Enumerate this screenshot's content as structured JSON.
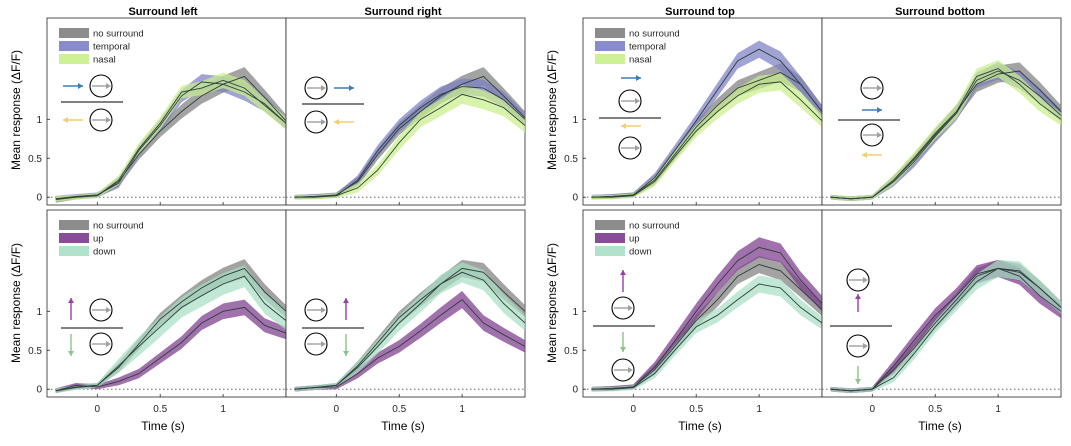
{
  "figure": {
    "column_titles": [
      "Surround left",
      "Surround right",
      "Surround top",
      "Surround bottom"
    ],
    "ylabel": "Mean response (ΔF/F)",
    "xlabel": "Time (s)",
    "colors": {
      "no_surround": "#7f7f7f",
      "temporal": "#7b7fc4",
      "nasal": "#c9f08c",
      "up": "#7b3a8c",
      "down": "#a9dfc5",
      "line": "#2f3f3a",
      "arrow_blue": "#3a7fb5",
      "arrow_yellow": "#f2cf6e",
      "arrow_purple": "#9b3fa8",
      "arrow_green": "#8bc48a",
      "arrow_gray": "#a0a0a0"
    }
  },
  "legends": {
    "horizontal": [
      "no surround",
      "temporal",
      "nasal"
    ],
    "vertical": [
      "no surround",
      "up",
      "down"
    ]
  },
  "chart_data": [
    {
      "type": "area",
      "id": "surround-left-horizontal",
      "x": [
        -0.33,
        -0.17,
        0,
        0.17,
        0.33,
        0.5,
        0.67,
        0.83,
        1.0,
        1.17,
        1.33,
        1.5
      ],
      "xlim": [
        -0.4,
        1.5
      ],
      "ylim": [
        -0.1,
        2.3
      ],
      "xticks": [
        0,
        0.5,
        1
      ],
      "xtick_labels": [
        "0",
        "0.5",
        "1"
      ],
      "yticks": [
        0,
        0.5,
        1
      ],
      "ytick_labels": [
        "0",
        "0.5",
        "1"
      ],
      "series": [
        {
          "name": "no surround",
          "mean": [
            -0.03,
            0,
            0.02,
            0.2,
            0.55,
            0.85,
            1.1,
            1.3,
            1.45,
            1.55,
            1.28,
            0.98
          ],
          "sem": [
            0.04,
            0.03,
            0.03,
            0.06,
            0.07,
            0.08,
            0.09,
            0.1,
            0.11,
            0.12,
            0.1,
            0.08
          ]
        },
        {
          "name": "temporal",
          "mean": [
            -0.02,
            0.01,
            0.03,
            0.18,
            0.6,
            0.92,
            1.3,
            1.48,
            1.45,
            1.35,
            1.2,
            0.95
          ],
          "sem": [
            0.04,
            0.03,
            0.03,
            0.06,
            0.07,
            0.08,
            0.08,
            0.1,
            0.1,
            0.11,
            0.1,
            0.08
          ]
        },
        {
          "name": "nasal",
          "mean": [
            -0.02,
            0.0,
            0.02,
            0.22,
            0.62,
            0.95,
            1.35,
            1.4,
            1.5,
            1.4,
            1.18,
            0.95
          ],
          "sem": [
            0.04,
            0.03,
            0.03,
            0.06,
            0.07,
            0.08,
            0.08,
            0.09,
            0.1,
            0.1,
            0.09,
            0.08
          ]
        }
      ]
    },
    {
      "type": "area",
      "id": "surround-right-horizontal",
      "x": [
        -0.33,
        -0.17,
        0,
        0.17,
        0.33,
        0.5,
        0.67,
        0.83,
        1.0,
        1.17,
        1.33,
        1.5
      ],
      "xlim": [
        -0.4,
        1.5
      ],
      "ylim": [
        -0.1,
        2.3
      ],
      "xticks": [
        0,
        0.5,
        1
      ],
      "xtick_labels": [
        "0",
        "0.5",
        "1"
      ],
      "yticks": [
        0,
        0.5,
        1
      ],
      "ytick_labels": [
        "0",
        "0.5",
        "1"
      ],
      "series": [
        {
          "name": "no surround",
          "mean": [
            0,
            0.01,
            0.03,
            0.2,
            0.55,
            0.88,
            1.1,
            1.3,
            1.45,
            1.55,
            1.3,
            1.02
          ],
          "sem": [
            0.03,
            0.03,
            0.03,
            0.06,
            0.07,
            0.08,
            0.09,
            0.1,
            0.11,
            0.12,
            0.1,
            0.08
          ]
        },
        {
          "name": "temporal",
          "mean": [
            0,
            0.01,
            0.02,
            0.22,
            0.6,
            0.92,
            1.15,
            1.32,
            1.42,
            1.4,
            1.25,
            1.0
          ],
          "sem": [
            0.03,
            0.03,
            0.03,
            0.06,
            0.07,
            0.08,
            0.09,
            0.1,
            0.1,
            0.11,
            0.1,
            0.08
          ]
        },
        {
          "name": "nasal",
          "mean": [
            0,
            0,
            0.02,
            0.12,
            0.35,
            0.7,
            1.0,
            1.15,
            1.32,
            1.25,
            1.15,
            0.92
          ],
          "sem": [
            0.03,
            0.03,
            0.03,
            0.06,
            0.07,
            0.09,
            0.1,
            0.11,
            0.12,
            0.12,
            0.11,
            0.09
          ]
        }
      ]
    },
    {
      "type": "area",
      "id": "surround-top-horizontal",
      "x": [
        -0.33,
        -0.17,
        0,
        0.17,
        0.33,
        0.5,
        0.67,
        0.83,
        1.0,
        1.17,
        1.33,
        1.5
      ],
      "xlim": [
        -0.4,
        1.5
      ],
      "ylim": [
        -0.1,
        2.3
      ],
      "xticks": [
        0,
        0.5,
        1
      ],
      "xtick_labels": [
        "0",
        "0.5",
        "1"
      ],
      "yticks": [
        0,
        0.5,
        1
      ],
      "ytick_labels": [
        "0",
        "0.5",
        "1"
      ],
      "series": [
        {
          "name": "no surround",
          "mean": [
            0,
            0.01,
            0.03,
            0.22,
            0.55,
            0.9,
            1.18,
            1.4,
            1.5,
            1.6,
            1.45,
            1.1
          ],
          "sem": [
            0.03,
            0.03,
            0.03,
            0.06,
            0.07,
            0.08,
            0.09,
            0.1,
            0.11,
            0.12,
            0.1,
            0.08
          ]
        },
        {
          "name": "temporal",
          "mean": [
            0,
            0.01,
            0.03,
            0.25,
            0.6,
            0.98,
            1.38,
            1.75,
            1.9,
            1.75,
            1.45,
            1.1
          ],
          "sem": [
            0.03,
            0.03,
            0.03,
            0.06,
            0.07,
            0.08,
            0.09,
            0.1,
            0.11,
            0.12,
            0.1,
            0.08
          ]
        },
        {
          "name": "nasal",
          "mean": [
            0,
            0,
            0.02,
            0.2,
            0.52,
            0.85,
            1.1,
            1.3,
            1.45,
            1.48,
            1.25,
            0.98
          ],
          "sem": [
            0.03,
            0.03,
            0.03,
            0.06,
            0.07,
            0.08,
            0.09,
            0.1,
            0.11,
            0.11,
            0.1,
            0.08
          ]
        }
      ]
    },
    {
      "type": "area",
      "id": "surround-bottom-horizontal",
      "x": [
        -0.33,
        -0.17,
        0,
        0.17,
        0.33,
        0.5,
        0.67,
        0.83,
        1.0,
        1.17,
        1.33,
        1.5
      ],
      "xlim": [
        -0.4,
        1.5
      ],
      "ylim": [
        -0.1,
        2.3
      ],
      "xticks": [
        0,
        0.5,
        1
      ],
      "xtick_labels": [
        "0",
        "0.5",
        "1"
      ],
      "yticks": [
        0,
        0.5,
        1
      ],
      "ytick_labels": [
        "0",
        "0.5",
        "1"
      ],
      "series": [
        {
          "name": "no surround",
          "mean": [
            0,
            -0.02,
            0.0,
            0.22,
            0.48,
            0.8,
            1.1,
            1.45,
            1.58,
            1.62,
            1.38,
            1.1
          ],
          "sem": [
            0.03,
            0.03,
            0.03,
            0.06,
            0.07,
            0.08,
            0.09,
            0.1,
            0.11,
            0.11,
            0.1,
            0.08
          ]
        },
        {
          "name": "temporal",
          "mean": [
            0,
            -0.02,
            0.0,
            0.2,
            0.45,
            0.78,
            1.08,
            1.5,
            1.62,
            1.5,
            1.3,
            1.05
          ],
          "sem": [
            0.03,
            0.03,
            0.03,
            0.06,
            0.07,
            0.08,
            0.09,
            0.1,
            0.11,
            0.11,
            0.1,
            0.08
          ]
        },
        {
          "name": "nasal",
          "mean": [
            0,
            -0.02,
            0.0,
            0.22,
            0.5,
            0.82,
            1.1,
            1.55,
            1.65,
            1.45,
            1.2,
            1.0
          ],
          "sem": [
            0.03,
            0.03,
            0.03,
            0.06,
            0.07,
            0.08,
            0.09,
            0.1,
            0.11,
            0.11,
            0.1,
            0.08
          ]
        }
      ]
    },
    {
      "type": "area",
      "id": "surround-left-vertical",
      "x": [
        -0.33,
        -0.17,
        0,
        0.17,
        0.33,
        0.5,
        0.67,
        0.83,
        1.0,
        1.17,
        1.33,
        1.5
      ],
      "xlim": [
        -0.4,
        1.5
      ],
      "ylim": [
        -0.1,
        2.3
      ],
      "xticks": [
        0,
        0.5,
        1
      ],
      "xtick_labels": [
        "0",
        "0.5",
        "1"
      ],
      "yticks": [
        0,
        0.5,
        1
      ],
      "ytick_labels": [
        "0",
        "0.5",
        "1"
      ],
      "series": [
        {
          "name": "no surround",
          "mean": [
            -0.02,
            0.03,
            0.05,
            0.28,
            0.58,
            0.9,
            1.12,
            1.3,
            1.45,
            1.55,
            1.25,
            1.0
          ],
          "sem": [
            0.03,
            0.03,
            0.03,
            0.06,
            0.07,
            0.08,
            0.09,
            0.1,
            0.11,
            0.12,
            0.1,
            0.08
          ]
        },
        {
          "name": "up",
          "mean": [
            -0.02,
            0.05,
            0.03,
            0.1,
            0.2,
            0.4,
            0.6,
            0.85,
            1.0,
            1.05,
            0.82,
            0.72
          ],
          "sem": [
            0.03,
            0.03,
            0.03,
            0.05,
            0.06,
            0.07,
            0.08,
            0.09,
            0.1,
            0.1,
            0.09,
            0.08
          ]
        },
        {
          "name": "down",
          "mean": [
            -0.02,
            0.02,
            0.05,
            0.3,
            0.55,
            0.8,
            1.05,
            1.2,
            1.35,
            1.45,
            1.1,
            0.88
          ],
          "sem": [
            0.03,
            0.03,
            0.03,
            0.09,
            0.12,
            0.13,
            0.13,
            0.14,
            0.14,
            0.14,
            0.13,
            0.12
          ]
        }
      ]
    },
    {
      "type": "area",
      "id": "surround-right-vertical",
      "x": [
        -0.33,
        -0.17,
        0,
        0.17,
        0.33,
        0.5,
        0.67,
        0.83,
        1.0,
        1.17,
        1.33,
        1.5
      ],
      "xlim": [
        -0.4,
        1.5
      ],
      "ylim": [
        -0.1,
        2.3
      ],
      "xticks": [
        0,
        0.5,
        1
      ],
      "xtick_labels": [
        "0",
        "0.5",
        "1"
      ],
      "yticks": [
        0,
        0.5,
        1
      ],
      "ytick_labels": [
        "0",
        "0.5",
        "1"
      ],
      "series": [
        {
          "name": "no surround",
          "mean": [
            0,
            0.02,
            0.05,
            0.3,
            0.6,
            0.92,
            1.15,
            1.35,
            1.55,
            1.5,
            1.25,
            1.0
          ],
          "sem": [
            0.03,
            0.03,
            0.03,
            0.06,
            0.07,
            0.08,
            0.09,
            0.1,
            0.11,
            0.12,
            0.1,
            0.08
          ]
        },
        {
          "name": "up",
          "mean": [
            0,
            0.02,
            0.03,
            0.2,
            0.4,
            0.55,
            0.75,
            0.95,
            1.15,
            0.85,
            0.7,
            0.55
          ],
          "sem": [
            0.03,
            0.03,
            0.03,
            0.06,
            0.07,
            0.08,
            0.09,
            0.1,
            0.11,
            0.1,
            0.09,
            0.08
          ]
        },
        {
          "name": "down",
          "mean": [
            0,
            0.02,
            0.05,
            0.28,
            0.55,
            0.85,
            1.1,
            1.35,
            1.5,
            1.4,
            1.1,
            0.85
          ],
          "sem": [
            0.03,
            0.03,
            0.03,
            0.07,
            0.09,
            0.1,
            0.11,
            0.12,
            0.13,
            0.13,
            0.12,
            0.1
          ]
        }
      ]
    },
    {
      "type": "area",
      "id": "surround-top-vertical",
      "x": [
        -0.33,
        -0.17,
        0,
        0.17,
        0.33,
        0.5,
        0.67,
        0.83,
        1.0,
        1.17,
        1.33,
        1.5
      ],
      "xlim": [
        -0.4,
        1.5
      ],
      "ylim": [
        -0.1,
        2.3
      ],
      "xticks": [
        0,
        0.5,
        1
      ],
      "xtick_labels": [
        "0",
        "0.5",
        "1"
      ],
      "yticks": [
        0,
        0.5,
        1
      ],
      "ytick_labels": [
        "0",
        "0.5",
        "1"
      ],
      "series": [
        {
          "name": "no surround",
          "mean": [
            0,
            0.01,
            0.03,
            0.25,
            0.55,
            0.88,
            1.15,
            1.45,
            1.6,
            1.52,
            1.28,
            1.02
          ],
          "sem": [
            0.03,
            0.03,
            0.03,
            0.06,
            0.07,
            0.08,
            0.09,
            0.1,
            0.11,
            0.12,
            0.1,
            0.08
          ]
        },
        {
          "name": "up",
          "mean": [
            0,
            0.01,
            0.03,
            0.28,
            0.62,
            1.0,
            1.35,
            1.65,
            1.82,
            1.75,
            1.4,
            1.1
          ],
          "sem": [
            0.03,
            0.03,
            0.03,
            0.07,
            0.09,
            0.1,
            0.11,
            0.12,
            0.13,
            0.12,
            0.11,
            0.1
          ]
        },
        {
          "name": "down",
          "mean": [
            0,
            0,
            0.02,
            0.2,
            0.5,
            0.8,
            0.95,
            1.15,
            1.35,
            1.3,
            1.05,
            0.85
          ],
          "sem": [
            0.03,
            0.03,
            0.03,
            0.06,
            0.07,
            0.08,
            0.09,
            0.1,
            0.11,
            0.11,
            0.1,
            0.08
          ]
        }
      ]
    },
    {
      "type": "area",
      "id": "surround-bottom-vertical",
      "x": [
        -0.33,
        -0.17,
        0,
        0.17,
        0.33,
        0.5,
        0.67,
        0.83,
        1.0,
        1.17,
        1.33,
        1.5
      ],
      "xlim": [
        -0.4,
        1.5
      ],
      "ylim": [
        -0.1,
        2.3
      ],
      "xticks": [
        0,
        0.5,
        1
      ],
      "xtick_labels": [
        "0",
        "0.5",
        "1"
      ],
      "yticks": [
        0,
        0.5,
        1
      ],
      "ytick_labels": [
        "0",
        "0.5",
        "1"
      ],
      "series": [
        {
          "name": "no surround",
          "mean": [
            0,
            -0.02,
            0.0,
            0.25,
            0.52,
            0.85,
            1.15,
            1.45,
            1.55,
            1.5,
            1.3,
            1.05
          ],
          "sem": [
            0.03,
            0.03,
            0.03,
            0.06,
            0.07,
            0.08,
            0.09,
            0.1,
            0.11,
            0.11,
            0.1,
            0.08
          ]
        },
        {
          "name": "up",
          "mean": [
            0,
            -0.02,
            0.0,
            0.3,
            0.62,
            0.95,
            1.2,
            1.48,
            1.55,
            1.45,
            1.2,
            1.0
          ],
          "sem": [
            0.03,
            0.03,
            0.03,
            0.07,
            0.08,
            0.09,
            0.1,
            0.11,
            0.11,
            0.11,
            0.1,
            0.09
          ]
        },
        {
          "name": "down",
          "mean": [
            0,
            -0.02,
            0.0,
            0.15,
            0.45,
            0.8,
            1.1,
            1.38,
            1.55,
            1.52,
            1.3,
            1.05
          ],
          "sem": [
            0.03,
            0.03,
            0.03,
            0.06,
            0.07,
            0.08,
            0.09,
            0.1,
            0.11,
            0.12,
            0.1,
            0.08
          ]
        }
      ]
    }
  ]
}
